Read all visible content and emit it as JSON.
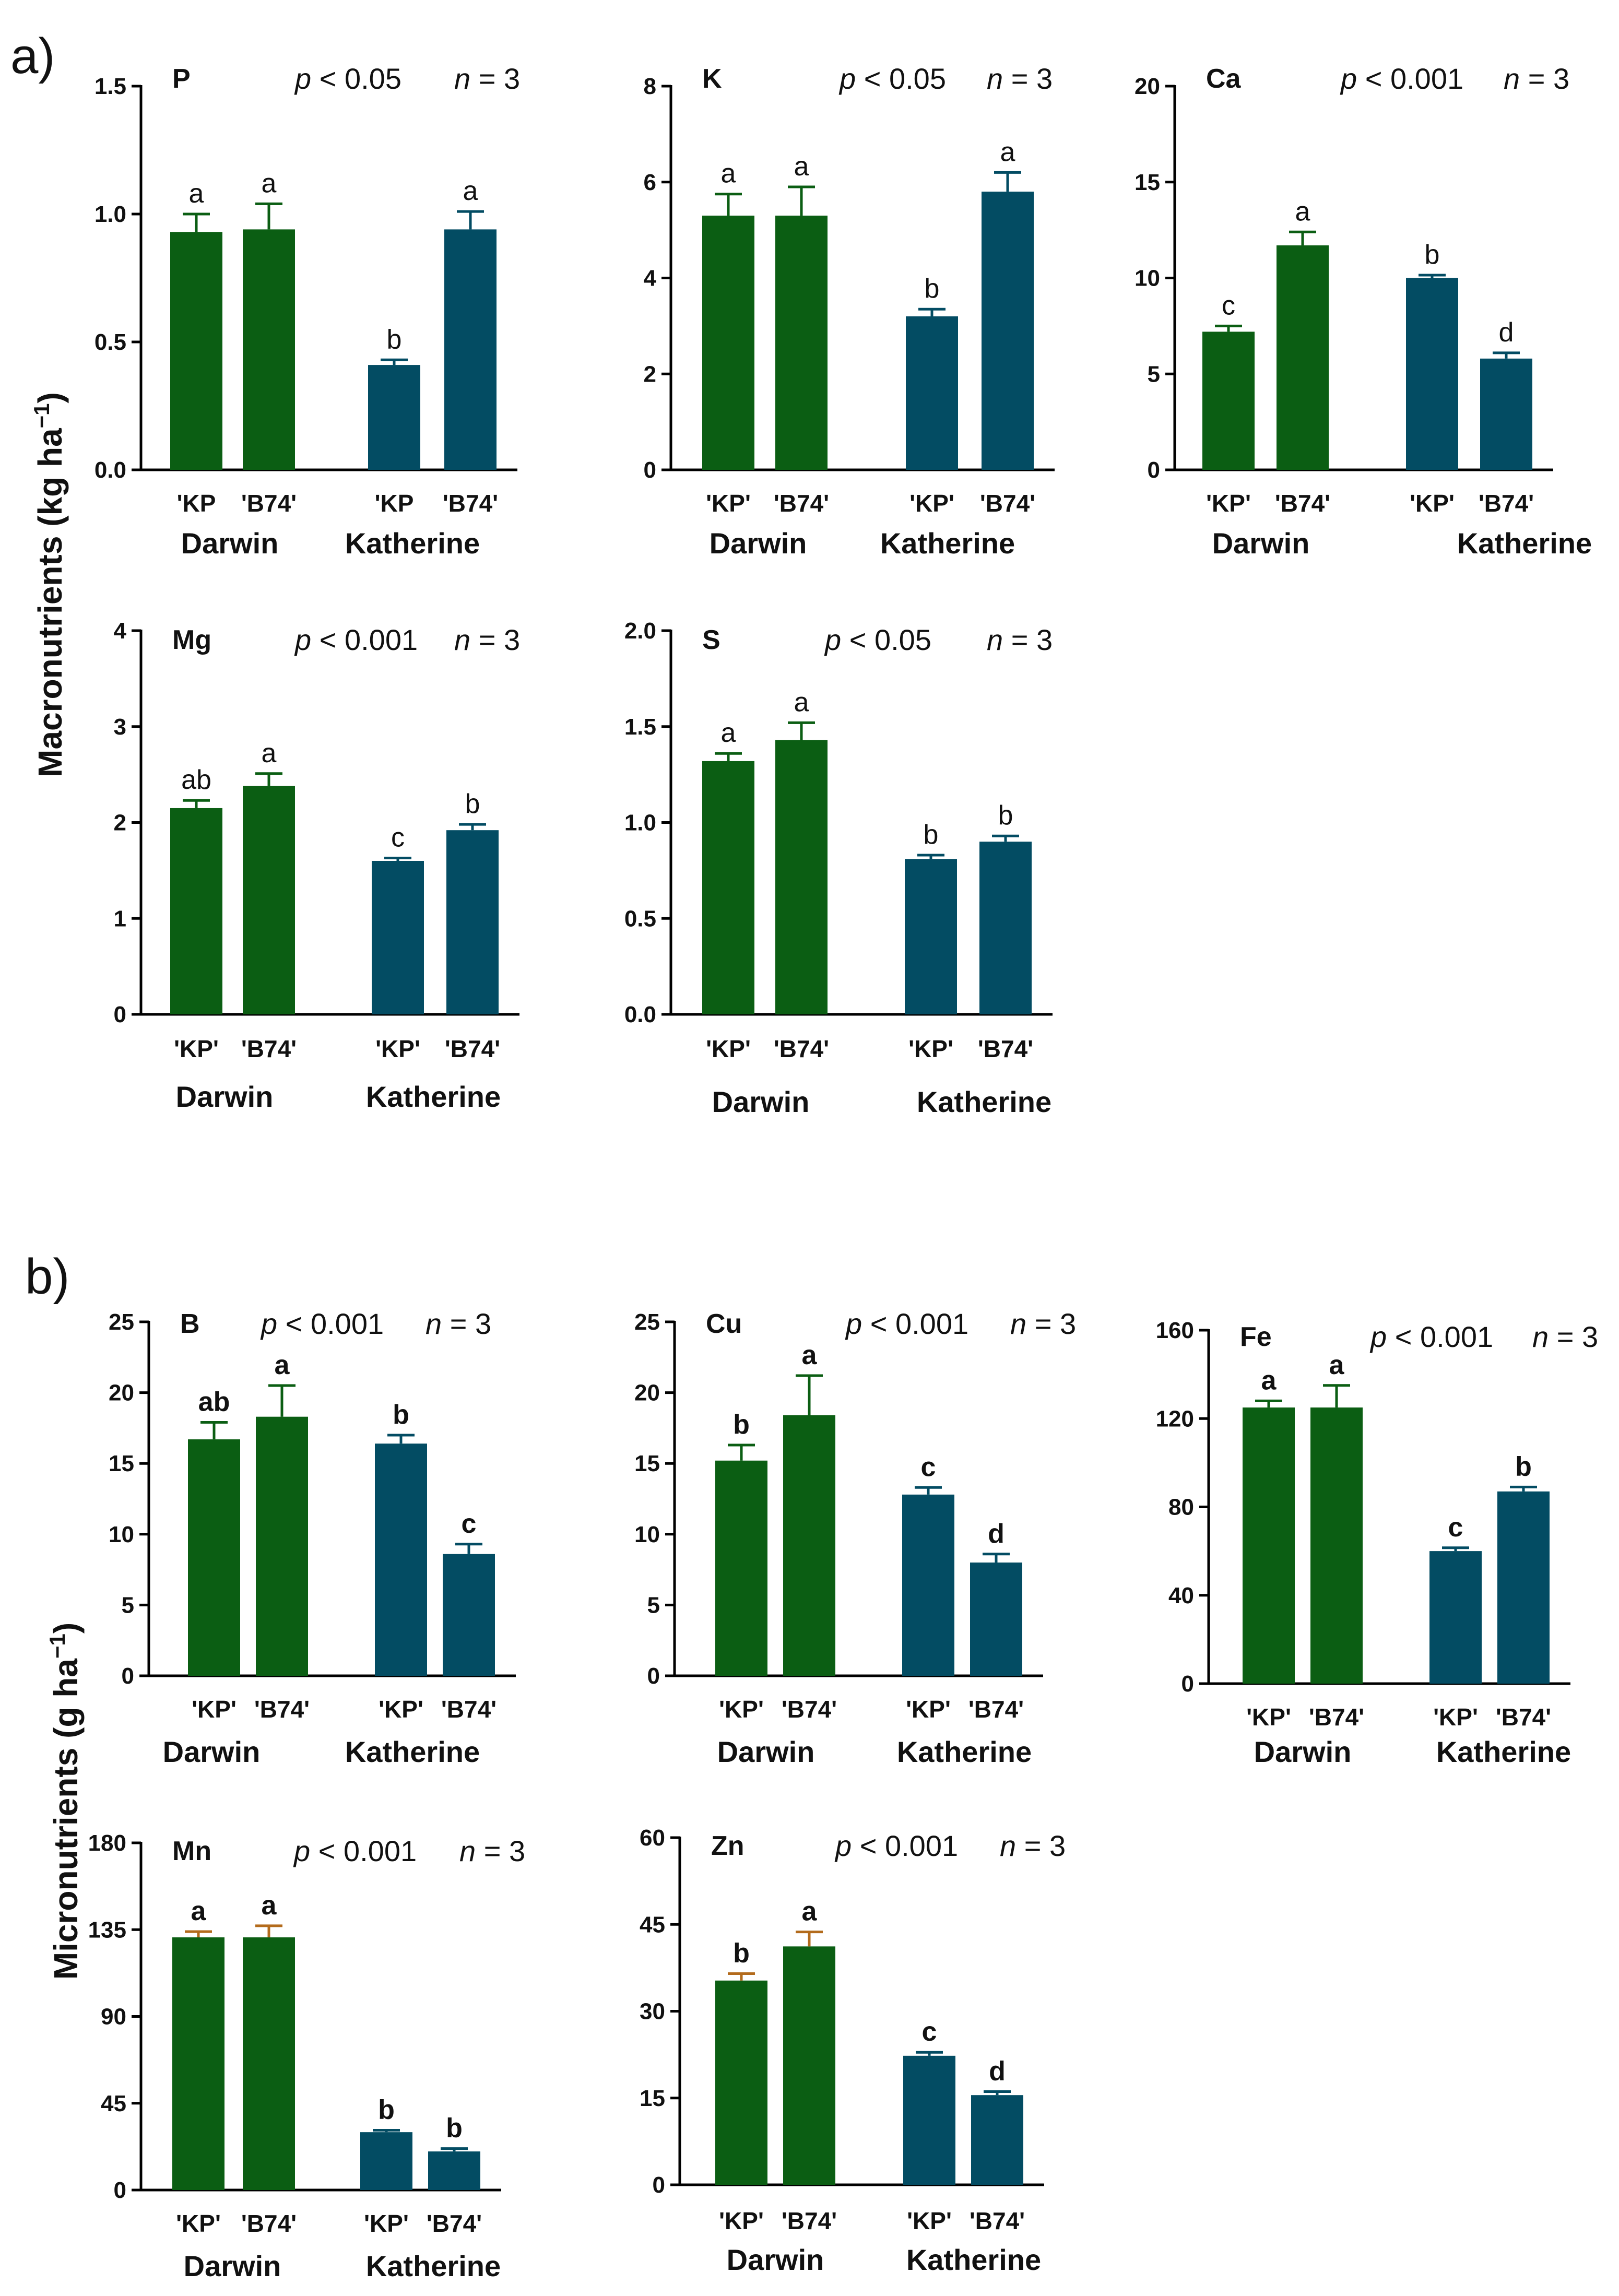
{
  "colors": {
    "darwin": "#0b5e13",
    "katherine": "#034c63",
    "error_micro_low": "#b36b1c"
  },
  "panels": [
    {
      "label": "a)",
      "ylabel": "Macronutrients (kg ha",
      "ylabel_sup": "−1",
      "ylabel_end": ")"
    },
    {
      "label": "b)",
      "ylabel": "Micronutrients (g ha",
      "ylabel_sup": "−1",
      "ylabel_end": ")"
    }
  ],
  "chart_data": [
    {
      "panel": "a)",
      "type": "bar",
      "element": "P",
      "p_prefix": "p",
      "p_text": " < 0.05",
      "n_prefix": "n",
      "n_text": " = 3",
      "ylim": [
        0,
        1.5
      ],
      "yticks": [
        "0.0",
        "0.5",
        "1.0",
        "1.5"
      ],
      "categories": [
        "'KP",
        "'B74'",
        "'KP",
        "'B74'"
      ],
      "groups": [
        "Darwin",
        "Katherine"
      ],
      "values": [
        0.93,
        0.94,
        0.41,
        0.94
      ],
      "errors": [
        0.07,
        0.1,
        0.02,
        0.07
      ],
      "letters": [
        "a",
        "a",
        "b",
        "a"
      ],
      "series_colors": [
        "darwin",
        "darwin",
        "katherine",
        "katherine"
      ]
    },
    {
      "panel": "a)",
      "type": "bar",
      "element": "K",
      "p_prefix": "p",
      "p_text": " < 0.05",
      "n_prefix": "n",
      "n_text": " = 3",
      "ylim": [
        0,
        8
      ],
      "yticks": [
        "0",
        "2",
        "4",
        "6",
        "8"
      ],
      "categories": [
        "'KP'",
        "'B74'",
        "'KP'",
        "'B74'"
      ],
      "groups": [
        "Darwin",
        "Katherine"
      ],
      "values": [
        5.3,
        5.3,
        3.2,
        5.8
      ],
      "errors": [
        0.45,
        0.6,
        0.15,
        0.4
      ],
      "letters": [
        "a",
        "a",
        "b",
        "a"
      ],
      "series_colors": [
        "darwin",
        "darwin",
        "katherine",
        "katherine"
      ]
    },
    {
      "panel": "a)",
      "type": "bar",
      "element": "Ca",
      "p_prefix": "p",
      "p_text": " < 0.001",
      "n_prefix": "n",
      "n_text": " = 3",
      "ylim": [
        0,
        20
      ],
      "yticks": [
        "0",
        "5",
        "10",
        "15",
        "20"
      ],
      "categories": [
        "'KP'",
        "'B74'",
        "'KP'",
        "'B74'"
      ],
      "groups": [
        "Darwin",
        "Katherine"
      ],
      "values": [
        7.2,
        11.7,
        10.0,
        5.8
      ],
      "errors": [
        0.3,
        0.7,
        0.15,
        0.3
      ],
      "letters": [
        "c",
        "a",
        "b",
        "d"
      ],
      "series_colors": [
        "darwin",
        "darwin",
        "katherine",
        "katherine"
      ]
    },
    {
      "panel": "a)",
      "type": "bar",
      "element": "Mg",
      "p_prefix": "p",
      "p_text": " < 0.001",
      "n_prefix": "n",
      "n_text": " = 3",
      "ylim": [
        0,
        4
      ],
      "yticks": [
        "0",
        "1",
        "2",
        "3",
        "4"
      ],
      "categories": [
        "'KP'",
        "'B74'",
        "'KP'",
        "'B74'"
      ],
      "groups": [
        "Darwin",
        "Katherine"
      ],
      "values": [
        2.15,
        2.38,
        1.6,
        1.92
      ],
      "errors": [
        0.08,
        0.13,
        0.03,
        0.06
      ],
      "letters": [
        "ab",
        "a",
        "c",
        "b"
      ],
      "series_colors": [
        "darwin",
        "darwin",
        "katherine",
        "katherine"
      ]
    },
    {
      "panel": "a)",
      "type": "bar",
      "element": "S",
      "p_prefix": "p",
      "p_text": " < 0.05",
      "n_prefix": "n",
      "n_text": " = 3",
      "ylim": [
        0,
        2.0
      ],
      "yticks": [
        "0.0",
        "0.5",
        "1.0",
        "1.5",
        "2.0"
      ],
      "categories": [
        "'KP'",
        "'B74'",
        "'KP'",
        "'B74'"
      ],
      "groups": [
        "Darwin",
        "Katherine"
      ],
      "values": [
        1.32,
        1.43,
        0.81,
        0.9
      ],
      "errors": [
        0.04,
        0.09,
        0.02,
        0.03
      ],
      "letters": [
        "a",
        "a",
        "b",
        "b"
      ],
      "series_colors": [
        "darwin",
        "darwin",
        "katherine",
        "katherine"
      ]
    },
    {
      "panel": "b)",
      "type": "bar",
      "element": "B",
      "p_prefix": "p",
      "p_text": " < 0.001",
      "n_prefix": "n",
      "n_text": " = 3",
      "ylim": [
        0,
        25
      ],
      "yticks": [
        "0",
        "5",
        "10",
        "15",
        "20",
        "25"
      ],
      "categories": [
        "'KP'",
        "'B74'",
        "'KP'",
        "'B74'"
      ],
      "groups": [
        "Darwin",
        "Katherine"
      ],
      "values": [
        16.7,
        18.3,
        16.4,
        8.6
      ],
      "errors": [
        1.2,
        2.2,
        0.6,
        0.7
      ],
      "letters": [
        "ab",
        "a",
        "b",
        "c"
      ],
      "series_colors": [
        "darwin",
        "darwin",
        "katherine",
        "katherine"
      ]
    },
    {
      "panel": "b)",
      "type": "bar",
      "element": "Cu",
      "p_prefix": "p",
      "p_text": " < 0.001",
      "n_prefix": "n",
      "n_text": " = 3",
      "ylim": [
        0,
        25
      ],
      "yticks": [
        "0",
        "5",
        "10",
        "15",
        "20",
        "25"
      ],
      "categories": [
        "'KP'",
        "'B74'",
        "'KP'",
        "'B74'"
      ],
      "groups": [
        "Darwin",
        "Katherine"
      ],
      "values": [
        15.2,
        18.4,
        12.8,
        8.0
      ],
      "errors": [
        1.1,
        2.8,
        0.5,
        0.6
      ],
      "letters": [
        "b",
        "a",
        "c",
        "d"
      ],
      "series_colors": [
        "darwin",
        "darwin",
        "katherine",
        "katherine"
      ]
    },
    {
      "panel": "b)",
      "type": "bar",
      "element": "Fe",
      "p_prefix": "p",
      "p_text": " < 0.001",
      "n_prefix": "n",
      "n_text": " = 3",
      "ylim": [
        0,
        160
      ],
      "yticks": [
        "0",
        "40",
        "80",
        "120",
        "160"
      ],
      "categories": [
        "'KP'",
        "'B74'",
        "'KP'",
        "'B74'"
      ],
      "groups": [
        "Darwin",
        "Katherine"
      ],
      "values": [
        125,
        125,
        60,
        87
      ],
      "errors": [
        3,
        10,
        1.5,
        2
      ],
      "letters": [
        "a",
        "a",
        "c",
        "b"
      ],
      "series_colors": [
        "darwin",
        "darwin",
        "katherine",
        "katherine"
      ]
    },
    {
      "panel": "b)",
      "type": "bar",
      "element": "Mn",
      "p_prefix": "p",
      "p_text": " < 0.001",
      "n_prefix": "n",
      "n_text": " = 3",
      "ylim": [
        0,
        180
      ],
      "yticks": [
        "0",
        "45",
        "90",
        "135",
        "180"
      ],
      "categories": [
        "'KP'",
        "'B74'",
        "'KP'",
        "'B74'"
      ],
      "groups": [
        "Darwin",
        "Katherine"
      ],
      "values": [
        131,
        131,
        30,
        20
      ],
      "errors": [
        3,
        6,
        1,
        1.5
      ],
      "letters": [
        "a",
        "a",
        "b",
        "b"
      ],
      "series_colors": [
        "darwin",
        "darwin",
        "katherine",
        "katherine"
      ]
    },
    {
      "panel": "b)",
      "type": "bar",
      "element": "Zn",
      "p_prefix": "p",
      "p_text": " < 0.001",
      "n_prefix": "n",
      "n_text": " = 3",
      "ylim": [
        0,
        60
      ],
      "yticks": [
        "0",
        "15",
        "30",
        "45",
        "60"
      ],
      "categories": [
        "'KP'",
        "'B74'",
        "'KP'",
        "'B74'"
      ],
      "groups": [
        "Darwin",
        "Katherine"
      ],
      "values": [
        35.3,
        41.2,
        22.3,
        15.5
      ],
      "errors": [
        1.2,
        2.5,
        0.6,
        0.6
      ],
      "letters": [
        "b",
        "a",
        "c",
        "d"
      ],
      "series_colors": [
        "darwin",
        "darwin",
        "katherine",
        "katherine"
      ]
    }
  ]
}
